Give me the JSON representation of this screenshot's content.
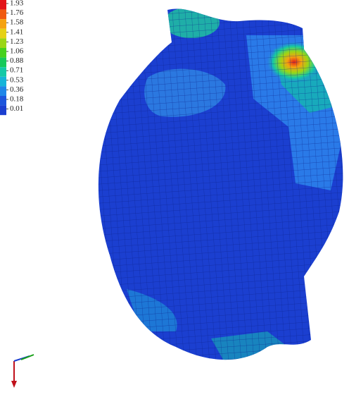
{
  "legend": {
    "labels": [
      "1.93",
      "1.76",
      "1.58",
      "1.41",
      "1.23",
      "1.06",
      "0.88",
      "0.71",
      "0.53",
      "0.36",
      "0.18",
      "0.01"
    ]
  }
}
